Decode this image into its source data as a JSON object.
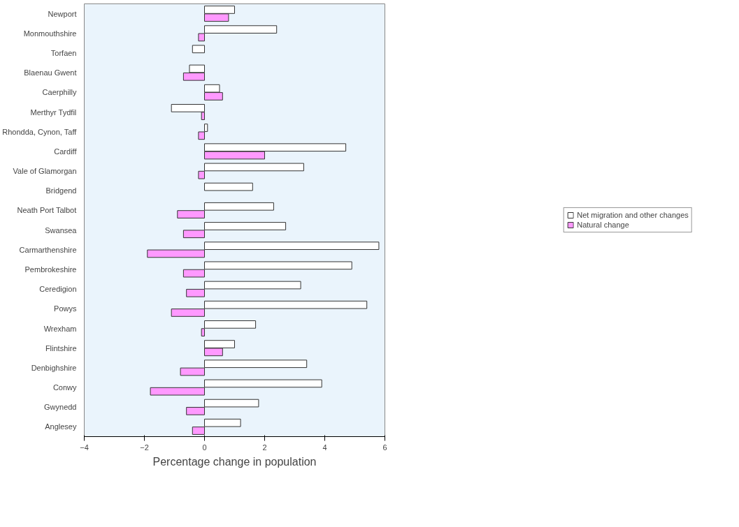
{
  "chart_data": {
    "type": "bar",
    "orientation": "horizontal",
    "xlabel": "Percentage change in population",
    "categories": [
      "Newport",
      "Monmouthshire",
      "Torfaen",
      "Blaenau Gwent",
      "Caerphilly",
      "Merthyr Tydfil",
      "Rhondda, Cynon, Taff",
      "Cardiff",
      "Vale of Glamorgan",
      "Bridgend",
      "Neath Port Talbot",
      "Swansea",
      "Carmarthenshire",
      "Pembrokeshire",
      "Ceredigion",
      "Powys",
      "Wrexham",
      "Flintshire",
      "Denbighshire",
      "Conwy",
      "Gwynedd",
      "Anglesey"
    ],
    "series": [
      {
        "name": "Net migration and other changes",
        "color": "#ffffff",
        "values": [
          1.0,
          2.4,
          -0.4,
          -0.5,
          0.5,
          -1.1,
          0.1,
          4.7,
          3.3,
          1.6,
          2.3,
          2.7,
          5.8,
          4.9,
          3.2,
          5.4,
          1.7,
          1.0,
          3.4,
          3.9,
          1.8,
          1.2
        ]
      },
      {
        "name": "Natural change",
        "color": "#ff99ff",
        "values": [
          0.8,
          -0.2,
          null,
          -0.7,
          0.6,
          -0.1,
          -0.2,
          2.0,
          -0.2,
          null,
          -0.9,
          -0.7,
          -1.9,
          -0.7,
          -0.6,
          -1.1,
          -0.1,
          0.6,
          -0.8,
          -1.8,
          -0.6,
          -0.4
        ]
      }
    ],
    "xlim": [
      -4,
      6
    ],
    "xticks": [
      -4,
      -2,
      0,
      2,
      4,
      6
    ],
    "grid": false,
    "legend": "right"
  }
}
